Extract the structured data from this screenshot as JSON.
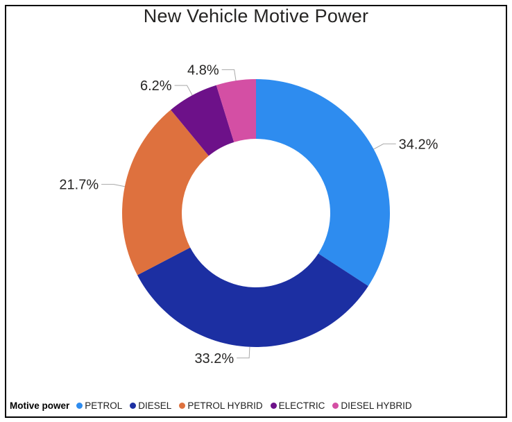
{
  "frame": {
    "background": "#FFFFFF",
    "border_color": "#000000"
  },
  "chart_data": {
    "type": "pie",
    "subtype": "donut",
    "title": "New Vehicle Motive Power",
    "title_color": "#252423",
    "legend": {
      "title": "Motive power",
      "position": "bottom-left",
      "text_color": "#212121",
      "entries": [
        "PETROL",
        "DIESEL",
        "PETROL HYBRID",
        "ELECTRIC",
        "DIESEL HYBRID"
      ]
    },
    "geometry": {
      "start_angle_deg": 0,
      "direction": "clockwise",
      "inner_radius_ratio": 0.554
    },
    "detail_labels": {
      "format": "percent",
      "color": "#252423",
      "leader_line_color": "#A8A8A8"
    },
    "slices": [
      {
        "label": "PETROL",
        "value_pct": 34.2,
        "display": "34.2%",
        "color": "#2E8CEF"
      },
      {
        "label": "DIESEL",
        "value_pct": 33.2,
        "display": "33.2%",
        "color": "#1C2FA2"
      },
      {
        "label": "PETROL HYBRID",
        "value_pct": 21.7,
        "display": "21.7%",
        "color": "#DE713E"
      },
      {
        "label": "ELECTRIC",
        "value_pct": 6.2,
        "display": "6.2%",
        "color": "#6D1189"
      },
      {
        "label": "DIESEL HYBRID",
        "value_pct": 4.8,
        "display": "4.8%",
        "color": "#D44FA4"
      }
    ]
  }
}
